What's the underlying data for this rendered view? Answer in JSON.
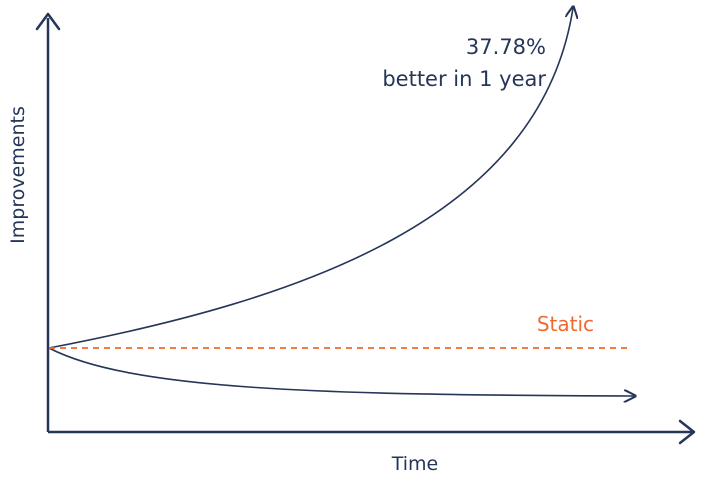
{
  "chart_data": {
    "type": "line",
    "xlabel": "Time",
    "ylabel": "Improvements",
    "annotation": {
      "line1": "37.78%",
      "line2": "better in 1 year"
    },
    "series": [
      {
        "name": "",
        "kind": "growth",
        "color": "#253658",
        "style": "solid",
        "arrow": true
      },
      {
        "name": "Static",
        "kind": "static",
        "color": "#f06a2f",
        "style": "dashed",
        "arrow": false
      },
      {
        "name": "",
        "kind": "decline",
        "color": "#253658",
        "style": "solid",
        "arrow": true
      }
    ],
    "grid": false,
    "legend": "none"
  },
  "colors": {
    "axis": "#253658",
    "text": "#253658",
    "accent": "#f06a2f"
  }
}
